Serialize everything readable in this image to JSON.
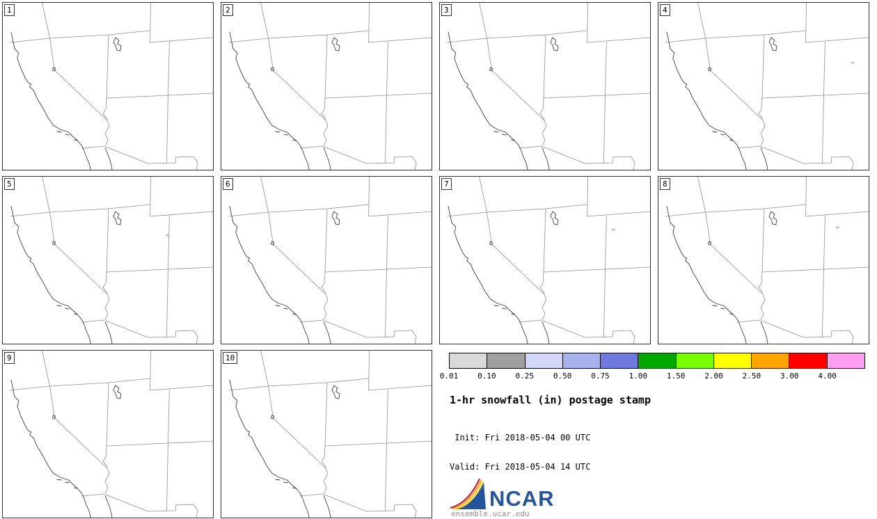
{
  "panels": [
    {
      "label": "1",
      "specks": []
    },
    {
      "label": "2",
      "specks": []
    },
    {
      "label": "3",
      "specks": []
    },
    {
      "label": "4",
      "specks": [
        [
          281,
          86
        ]
      ]
    },
    {
      "label": "5",
      "specks": [
        [
          238,
          84
        ]
      ]
    },
    {
      "label": "6",
      "specks": []
    },
    {
      "label": "7",
      "specks": [
        [
          251,
          76
        ]
      ]
    },
    {
      "label": "8",
      "specks": [
        [
          259,
          73
        ]
      ]
    },
    {
      "label": "9",
      "specks": []
    },
    {
      "label": "10",
      "specks": []
    }
  ],
  "legend": {
    "title": "1-hr snowfall (in) postage stamp",
    "init_line": " Init: Fri 2018-05-04 00 UTC",
    "valid_line": "Valid: Fri 2018-05-04 14 UTC",
    "colorbar": {
      "tick_labels": [
        "0.01",
        "0.10",
        "0.25",
        "0.50",
        "0.75",
        "1.00",
        "1.50",
        "2.00",
        "2.50",
        "3.00",
        "4.00"
      ],
      "segment_colors": [
        "#d9d9d9",
        "#a0a0a0",
        "#d2d8f6",
        "#a6b3ef",
        "#6f7ae0",
        "#00a800",
        "#7cfc00",
        "#ffff00",
        "#ffa500",
        "#ff0000",
        "#ff9ff3"
      ]
    },
    "logo": {
      "text": "NCAR",
      "url_text": "ensemble.ucar.edu",
      "color": "#24549c"
    }
  },
  "chart_data": {
    "type": "heatmap",
    "title": "1-hr snowfall (in) postage stamp",
    "subtitle": "Init: Fri 2018-05-04 00 UTC / Valid: Fri 2018-05-04 14 UTC",
    "panel_labels": [
      "1",
      "2",
      "3",
      "4",
      "5",
      "6",
      "7",
      "8",
      "9",
      "10"
    ],
    "region": "Western United States (CA, NV, UT, AZ, ID, WY, CO, NM)",
    "colorbar_ticks_in": [
      0.01,
      0.1,
      0.25,
      0.5,
      0.75,
      1.0,
      1.5,
      2.0,
      2.5,
      3.0,
      4.0
    ],
    "colorbar_colors": [
      "#d9d9d9",
      "#a0a0a0",
      "#d2d8f6",
      "#a6b3ef",
      "#6f7ae0",
      "#00a800",
      "#7cfc00",
      "#ffff00",
      "#ffa500",
      "#ff0000",
      "#ff9ff3"
    ],
    "values_summary": "All 10 ensemble member fields are essentially zero; only trace specks (<0.10 in) near the WY/CO area in members 4, 5, 7, 8"
  }
}
